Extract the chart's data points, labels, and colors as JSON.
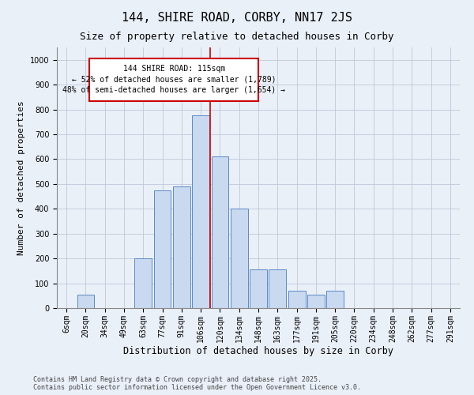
{
  "title": "144, SHIRE ROAD, CORBY, NN17 2JS",
  "subtitle": "Size of property relative to detached houses in Corby",
  "xlabel": "Distribution of detached houses by size in Corby",
  "ylabel": "Number of detached properties",
  "footer_line1": "Contains HM Land Registry data © Crown copyright and database right 2025.",
  "footer_line2": "Contains public sector information licensed under the Open Government Licence v3.0.",
  "categories": [
    "6sqm",
    "20sqm",
    "34sqm",
    "49sqm",
    "63sqm",
    "77sqm",
    "91sqm",
    "106sqm",
    "120sqm",
    "134sqm",
    "148sqm",
    "163sqm",
    "177sqm",
    "191sqm",
    "205sqm",
    "220sqm",
    "234sqm",
    "248sqm",
    "262sqm",
    "277sqm",
    "291sqm"
  ],
  "values": [
    0,
    55,
    0,
    0,
    200,
    475,
    490,
    775,
    610,
    400,
    155,
    155,
    70,
    55,
    70,
    0,
    0,
    0,
    0,
    0,
    0
  ],
  "bar_color": "#c9d9f0",
  "bar_edge_color": "#5b8ac5",
  "grid_color": "#c0c8d8",
  "bg_color": "#eaf0f8",
  "annotation_box_color": "#cc0000",
  "vline_color": "#cc0000",
  "annotation_text_line1": "144 SHIRE ROAD: 115sqm",
  "annotation_text_line2": "← 52% of detached houses are smaller (1,789)",
  "annotation_text_line3": "48% of semi-detached houses are larger (1,654) →",
  "vline_position": 7.5,
  "ylim": [
    0,
    1050
  ],
  "yticks": [
    0,
    100,
    200,
    300,
    400,
    500,
    600,
    700,
    800,
    900,
    1000
  ],
  "title_fontsize": 11,
  "subtitle_fontsize": 9,
  "xlabel_fontsize": 8.5,
  "ylabel_fontsize": 8,
  "tick_fontsize": 7,
  "annotation_fontsize": 7,
  "footer_fontsize": 6
}
